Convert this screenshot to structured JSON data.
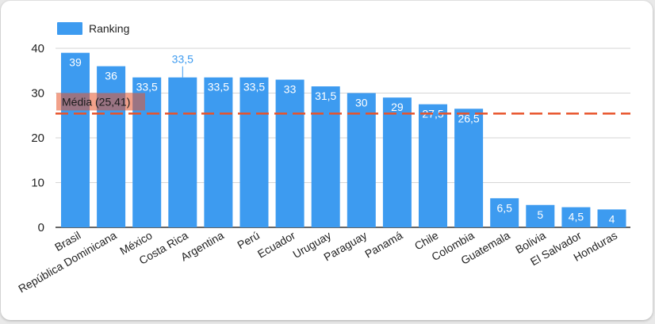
{
  "chart_data": {
    "type": "bar",
    "legend": "Ranking",
    "legend_position": "top-left",
    "categories": [
      "Brasil",
      "República Dominicana",
      "México",
      "Costa Rica",
      "Argentina",
      "Perú",
      "Ecuador",
      "Uruguay",
      "Paraguay",
      "Panamá",
      "Chile",
      "Colombia",
      "Guatemala",
      "Bolivia",
      "El Salvador",
      "Honduras"
    ],
    "values": [
      39,
      36,
      33.5,
      33.5,
      33.5,
      33.5,
      33,
      31.5,
      30,
      29,
      27.5,
      26.5,
      6.5,
      5,
      4.5,
      4
    ],
    "value_labels": [
      "39",
      "36",
      "33,5",
      "33,5",
      "33,5",
      "33,5",
      "33",
      "31,5",
      "30",
      "29",
      "27,5",
      "26,5",
      "6,5",
      "5",
      "4,5",
      "4"
    ],
    "yticks": [
      0,
      10,
      20,
      30,
      40
    ],
    "ylim": [
      0,
      40
    ],
    "grid": true,
    "mean_line": {
      "value": 25.41,
      "label": "Média (25,41)",
      "color": "#e8532a"
    },
    "bar_color": "#3d9bf0",
    "title": "",
    "xlabel": "",
    "ylabel": ""
  }
}
